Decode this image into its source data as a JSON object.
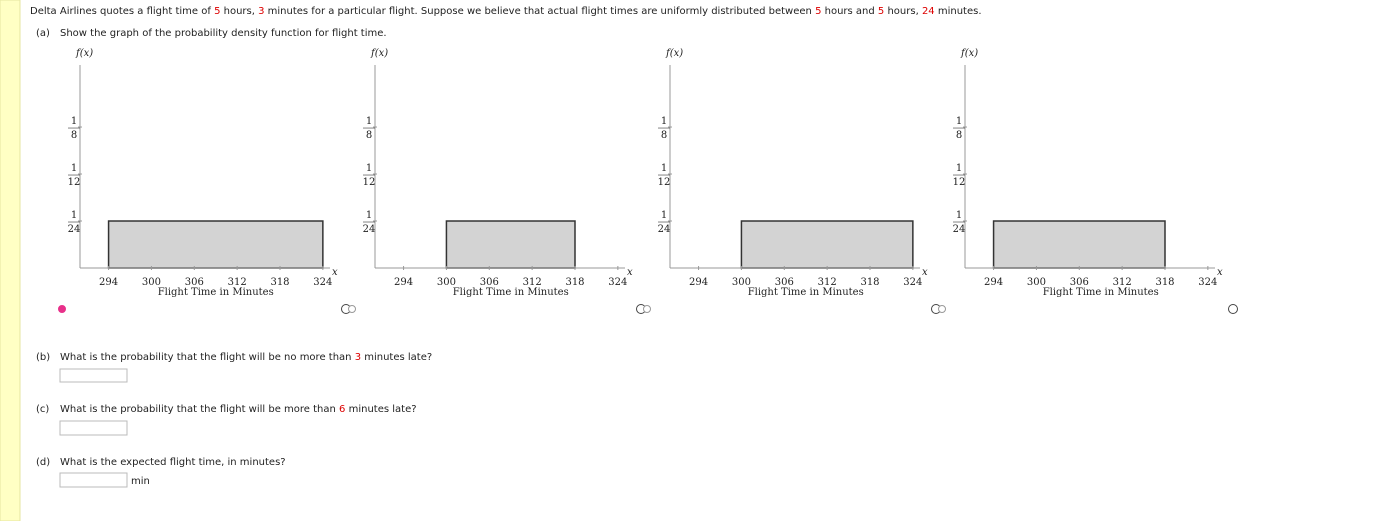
{
  "question": [
    {
      "text": "Delta Airlines quotes a flight time of ",
      "highlight": false
    },
    {
      "text": "5",
      "highlight": true
    },
    {
      "text": " hours, ",
      "highlight": false
    },
    {
      "text": "3",
      "highlight": true
    },
    {
      "text": " minutes for a particular flight. Suppose we believe that actual flight times are uniformly distributed between ",
      "highlight": false
    },
    {
      "text": "5",
      "highlight": true
    },
    {
      "text": " hours and ",
      "highlight": false
    },
    {
      "text": "5",
      "highlight": true
    },
    {
      "text": " hours, ",
      "highlight": false
    },
    {
      "text": "24",
      "highlight": true
    },
    {
      "text": " minutes.",
      "highlight": false
    }
  ],
  "parts": [
    {
      "label": "(a)",
      "segments": [
        {
          "text": "Show the graph of the probability density function for flight time.",
          "highlight": false
        }
      ]
    },
    {
      "label": "(b)",
      "segments": [
        {
          "text": "What is the probability that the flight will be no more than ",
          "highlight": false
        },
        {
          "text": "3",
          "highlight": true
        },
        {
          "text": " minutes late?",
          "highlight": false
        }
      ]
    },
    {
      "label": "(c)",
      "segments": [
        {
          "text": "What is the probability that the flight will be more than ",
          "highlight": false
        },
        {
          "text": "6",
          "highlight": true
        },
        {
          "text": " minutes late?",
          "highlight": false
        }
      ]
    },
    {
      "label": "(d)",
      "segments": [
        {
          "text": "What is the expected flight time, in minutes?",
          "highlight": false
        }
      ],
      "unit": "min"
    }
  ],
  "graph": {
    "y_label": "f(x)",
    "x_label": "Flight Time in Minutes",
    "x_axis_letter": "x",
    "xlim": [
      290,
      325
    ],
    "ylim": [
      0,
      0.18
    ],
    "xticks": [
      294,
      300,
      306,
      312,
      318,
      324
    ],
    "yticks": [
      {
        "numerator": 1,
        "denominator": 24
      },
      {
        "numerator": 1,
        "denominator": 12
      },
      {
        "numerator": 1,
        "denominator": 8
      }
    ]
  },
  "graph_options": [
    {
      "x_start": 294,
      "x_end": 324,
      "height": {
        "numerator": 1,
        "denominator": 24
      },
      "selected": true
    },
    {
      "x_start": 300,
      "x_end": 318,
      "height": {
        "numerator": 1,
        "denominator": 24
      },
      "selected": false
    },
    {
      "x_start": 300,
      "x_end": 324,
      "height": {
        "numerator": 1,
        "denominator": 24
      },
      "selected": false
    },
    {
      "x_start": 294,
      "x_end": 318,
      "height": {
        "numerator": 1,
        "denominator": 24
      },
      "selected": false
    }
  ]
}
